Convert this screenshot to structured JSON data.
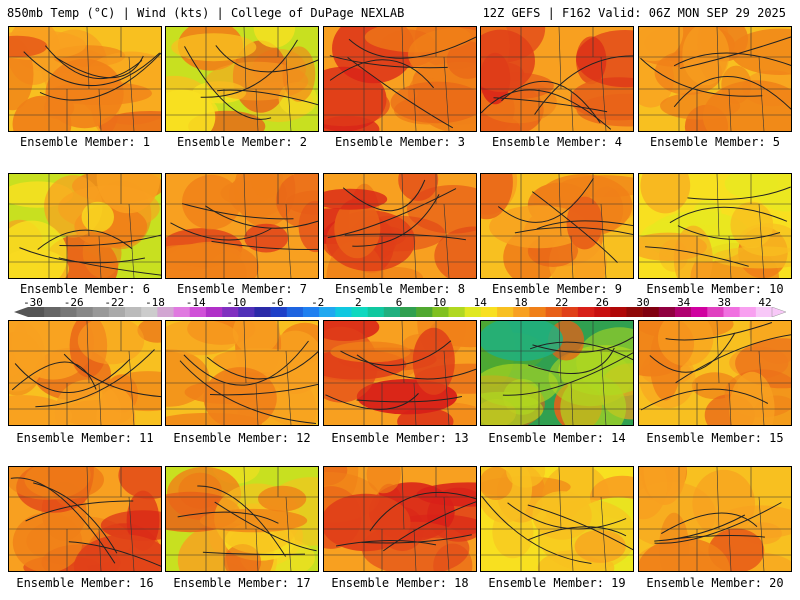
{
  "header": {
    "left": "850mb Temp (°C) | Wind (kts) | College of DuPage NEXLAB",
    "right": "12Z GEFS | F162 Valid: 06Z MON SEP 29 2025"
  },
  "colorbar": {
    "labels": [
      "-30",
      "-26",
      "-22",
      "-18",
      "-14",
      "-10",
      "-6",
      "-2",
      "2",
      "6",
      "10",
      "14",
      "18",
      "22",
      "26",
      "30",
      "34",
      "38",
      "42"
    ],
    "colors": [
      "#555555",
      "#666666",
      "#777777",
      "#888888",
      "#999999",
      "#aaaaaa",
      "#bbbbbb",
      "#cccccc",
      "#d2a6d2",
      "#e07ae0",
      "#d050d8",
      "#b030c8",
      "#8030c0",
      "#5030b8",
      "#2a2aa8",
      "#1e40c8",
      "#1e64e0",
      "#2080f0",
      "#20a8f0",
      "#10c8e0",
      "#10d8c0",
      "#10c8a0",
      "#20b080",
      "#30a050",
      "#50a830",
      "#80c020",
      "#b0d820",
      "#e0e820",
      "#f8e020",
      "#f8c020",
      "#f8a020",
      "#f08018",
      "#e86018",
      "#e04018",
      "#d82018",
      "#c81010",
      "#b00808",
      "#900808",
      "#800010",
      "#900040",
      "#b00070",
      "#d000a0",
      "#e040c0",
      "#f070e0",
      "#f8a0f0",
      "#f8c8f8"
    ],
    "unit_hint": "°C"
  },
  "member_label_prefix": "Ensemble Member:",
  "members": [
    {
      "id": "1",
      "label": "Ensemble Member: 1",
      "palette": "warm"
    },
    {
      "id": "2",
      "label": "Ensemble Member: 2",
      "palette": "mixed"
    },
    {
      "id": "3",
      "label": "Ensemble Member: 3",
      "palette": "hot"
    },
    {
      "id": "4",
      "label": "Ensemble Member: 4",
      "palette": "hot"
    },
    {
      "id": "5",
      "label": "Ensemble Member: 5",
      "palette": "warm"
    },
    {
      "id": "6",
      "label": "Ensemble Member: 6",
      "palette": "mixed"
    },
    {
      "id": "7",
      "label": "Ensemble Member: 7",
      "palette": "hot"
    },
    {
      "id": "8",
      "label": "Ensemble Member: 8",
      "palette": "hot"
    },
    {
      "id": "9",
      "label": "Ensemble Member: 9",
      "palette": "warm"
    },
    {
      "id": "10",
      "label": "Ensemble Member: 10",
      "palette": "mild"
    },
    {
      "id": "11",
      "label": "Ensemble Member: 11",
      "palette": "warm"
    },
    {
      "id": "12",
      "label": "Ensemble Member: 12",
      "palette": "warm"
    },
    {
      "id": "13",
      "label": "Ensemble Member: 13",
      "palette": "hot"
    },
    {
      "id": "14",
      "label": "Ensemble Member: 14",
      "palette": "cool"
    },
    {
      "id": "15",
      "label": "Ensemble Member: 15",
      "palette": "warm"
    },
    {
      "id": "16",
      "label": "Ensemble Member: 16",
      "palette": "hot"
    },
    {
      "id": "17",
      "label": "Ensemble Member: 17",
      "palette": "mixed"
    },
    {
      "id": "18",
      "label": "Ensemble Member: 18",
      "palette": "hot"
    },
    {
      "id": "19",
      "label": "Ensemble Member: 19",
      "palette": "mild"
    },
    {
      "id": "20",
      "label": "Ensemble Member: 20",
      "palette": "warm"
    }
  ]
}
